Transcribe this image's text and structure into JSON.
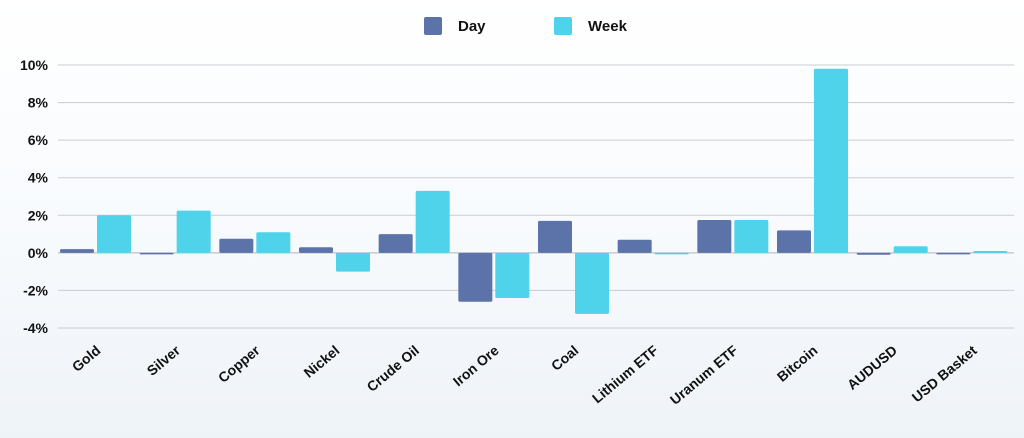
{
  "chart_data": {
    "type": "bar",
    "categories": [
      "Gold",
      "Silver",
      "Copper",
      "Nickel",
      "Crude Oil",
      "Iron Ore",
      "Coal",
      "Lithium ETF",
      "Uranum ETF",
      "Bitcoin",
      "AUDUSD",
      "USD Basket"
    ],
    "series": [
      {
        "name": "Day",
        "color": "#5b73a8",
        "values": [
          0.2,
          0.0,
          0.75,
          0.3,
          1.0,
          -2.6,
          1.7,
          0.7,
          1.75,
          1.2,
          -0.1,
          -0.05
        ]
      },
      {
        "name": "Week",
        "color": "#4fd3ea",
        "values": [
          2.0,
          2.25,
          1.1,
          -1.0,
          3.3,
          -2.4,
          -3.25,
          0.0,
          1.75,
          9.8,
          0.35,
          0.1
        ]
      }
    ],
    "yticks": [
      "10%",
      "8%",
      "6%",
      "4%",
      "2%",
      "0%",
      "-2%",
      "-4%"
    ],
    "ylim": [
      -4,
      10
    ],
    "grid": true,
    "legend_position": "top-center"
  }
}
